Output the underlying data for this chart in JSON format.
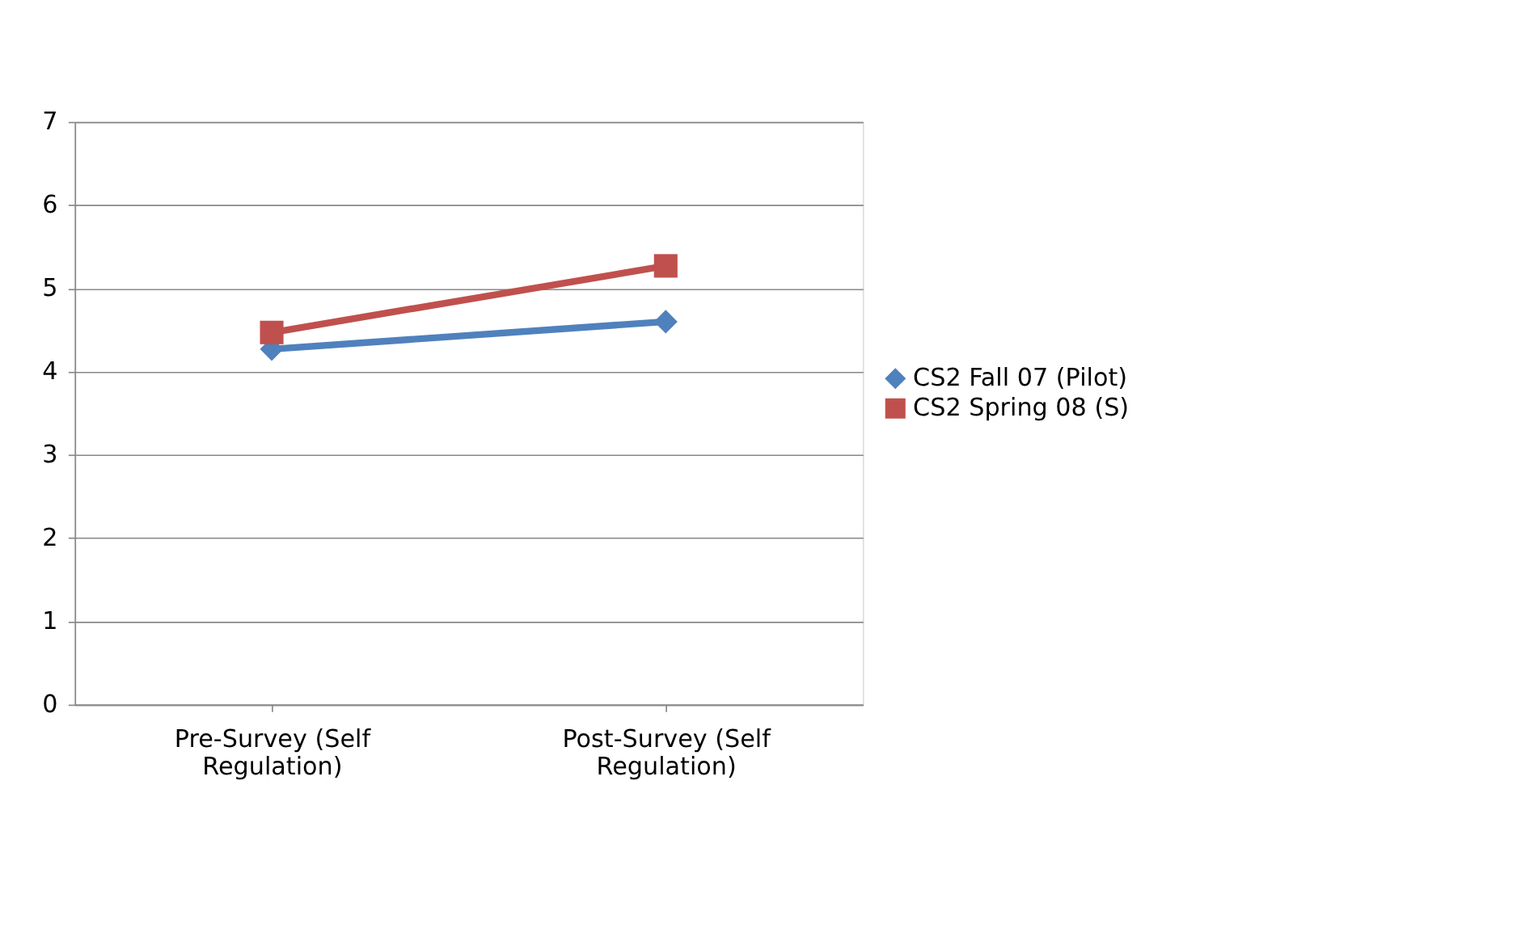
{
  "chart_data": {
    "type": "line",
    "categories": [
      "Pre-Survey (Self Regulation)",
      "Post-Survey (Self Regulation)"
    ],
    "series": [
      {
        "name": "CS2 Fall 07 (Pilot)",
        "color": "#4f81bd",
        "values": [
          4.27,
          4.6
        ],
        "marker": "diamond"
      },
      {
        "name": "CS2 Spring 08 (S)",
        "color": "#c0504d",
        "values": [
          4.47,
          5.27
        ],
        "marker": "square"
      }
    ],
    "ylim": [
      0,
      7
    ],
    "yticks": [
      0,
      1,
      2,
      3,
      4,
      5,
      6,
      7
    ],
    "grid": "y",
    "legend": "right",
    "line_style": "solid"
  }
}
